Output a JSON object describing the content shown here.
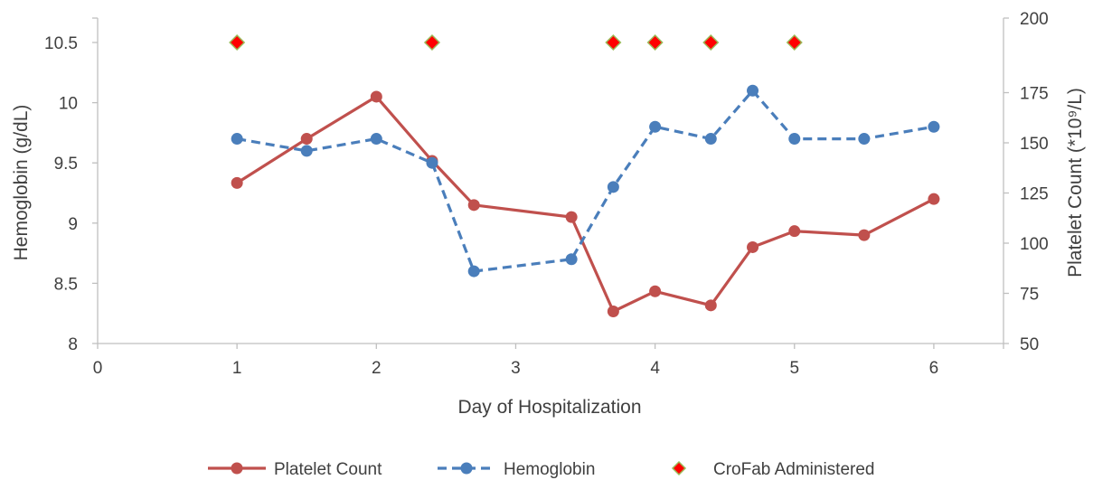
{
  "chart_data": {
    "type": "line",
    "title": "",
    "xlabel": "Day of Hospitalization",
    "ylabel_left": "Hemoglobin (g/dL)",
    "ylabel_right": "Platelet Count (*10⁹/L)",
    "xlim": [
      0,
      6.5
    ],
    "ylim_left": [
      8,
      10.5
    ],
    "ylim_right": [
      50,
      200
    ],
    "x_ticks": [
      "0",
      "1",
      "2",
      "3",
      "4",
      "5",
      "6"
    ],
    "y_ticks_left": [
      "8",
      "8.5",
      "9",
      "9.5",
      "10",
      "10.5"
    ],
    "y_ticks_right": [
      "50",
      "75",
      "100",
      "125",
      "150",
      "175",
      "200"
    ],
    "grid": false,
    "legend_position": "bottom",
    "series": [
      {
        "name": "Platelet Count",
        "axis": "right",
        "style": "solid",
        "color": "#C0504D",
        "x": [
          1,
          1.5,
          2,
          2.4,
          2.7,
          3.4,
          3.7,
          4,
          4.4,
          4.7,
          5,
          5.5,
          6
        ],
        "y": [
          130,
          152,
          173,
          141,
          119,
          113,
          66,
          76,
          69,
          98,
          106,
          104,
          122
        ]
      },
      {
        "name": "Hemoglobin",
        "axis": "left",
        "style": "dashed",
        "color": "#4A7EBB",
        "x": [
          1,
          1.5,
          2,
          2.4,
          2.7,
          3.4,
          3.7,
          4,
          4.4,
          4.7,
          5,
          5.5,
          6
        ],
        "y": [
          9.7,
          9.6,
          9.7,
          9.5,
          8.6,
          8.7,
          9.3,
          9.8,
          9.7,
          10.1,
          9.7,
          9.7,
          9.8
        ]
      },
      {
        "name": "CroFab Administered",
        "axis": "left",
        "style": "markers",
        "color": "#FF0000",
        "edge_color": "#9BBB59",
        "x": [
          1,
          2.4,
          3.7,
          4,
          4.4,
          5
        ],
        "y": [
          10.5,
          10.5,
          10.5,
          10.5,
          10.5,
          10.5
        ]
      }
    ]
  }
}
